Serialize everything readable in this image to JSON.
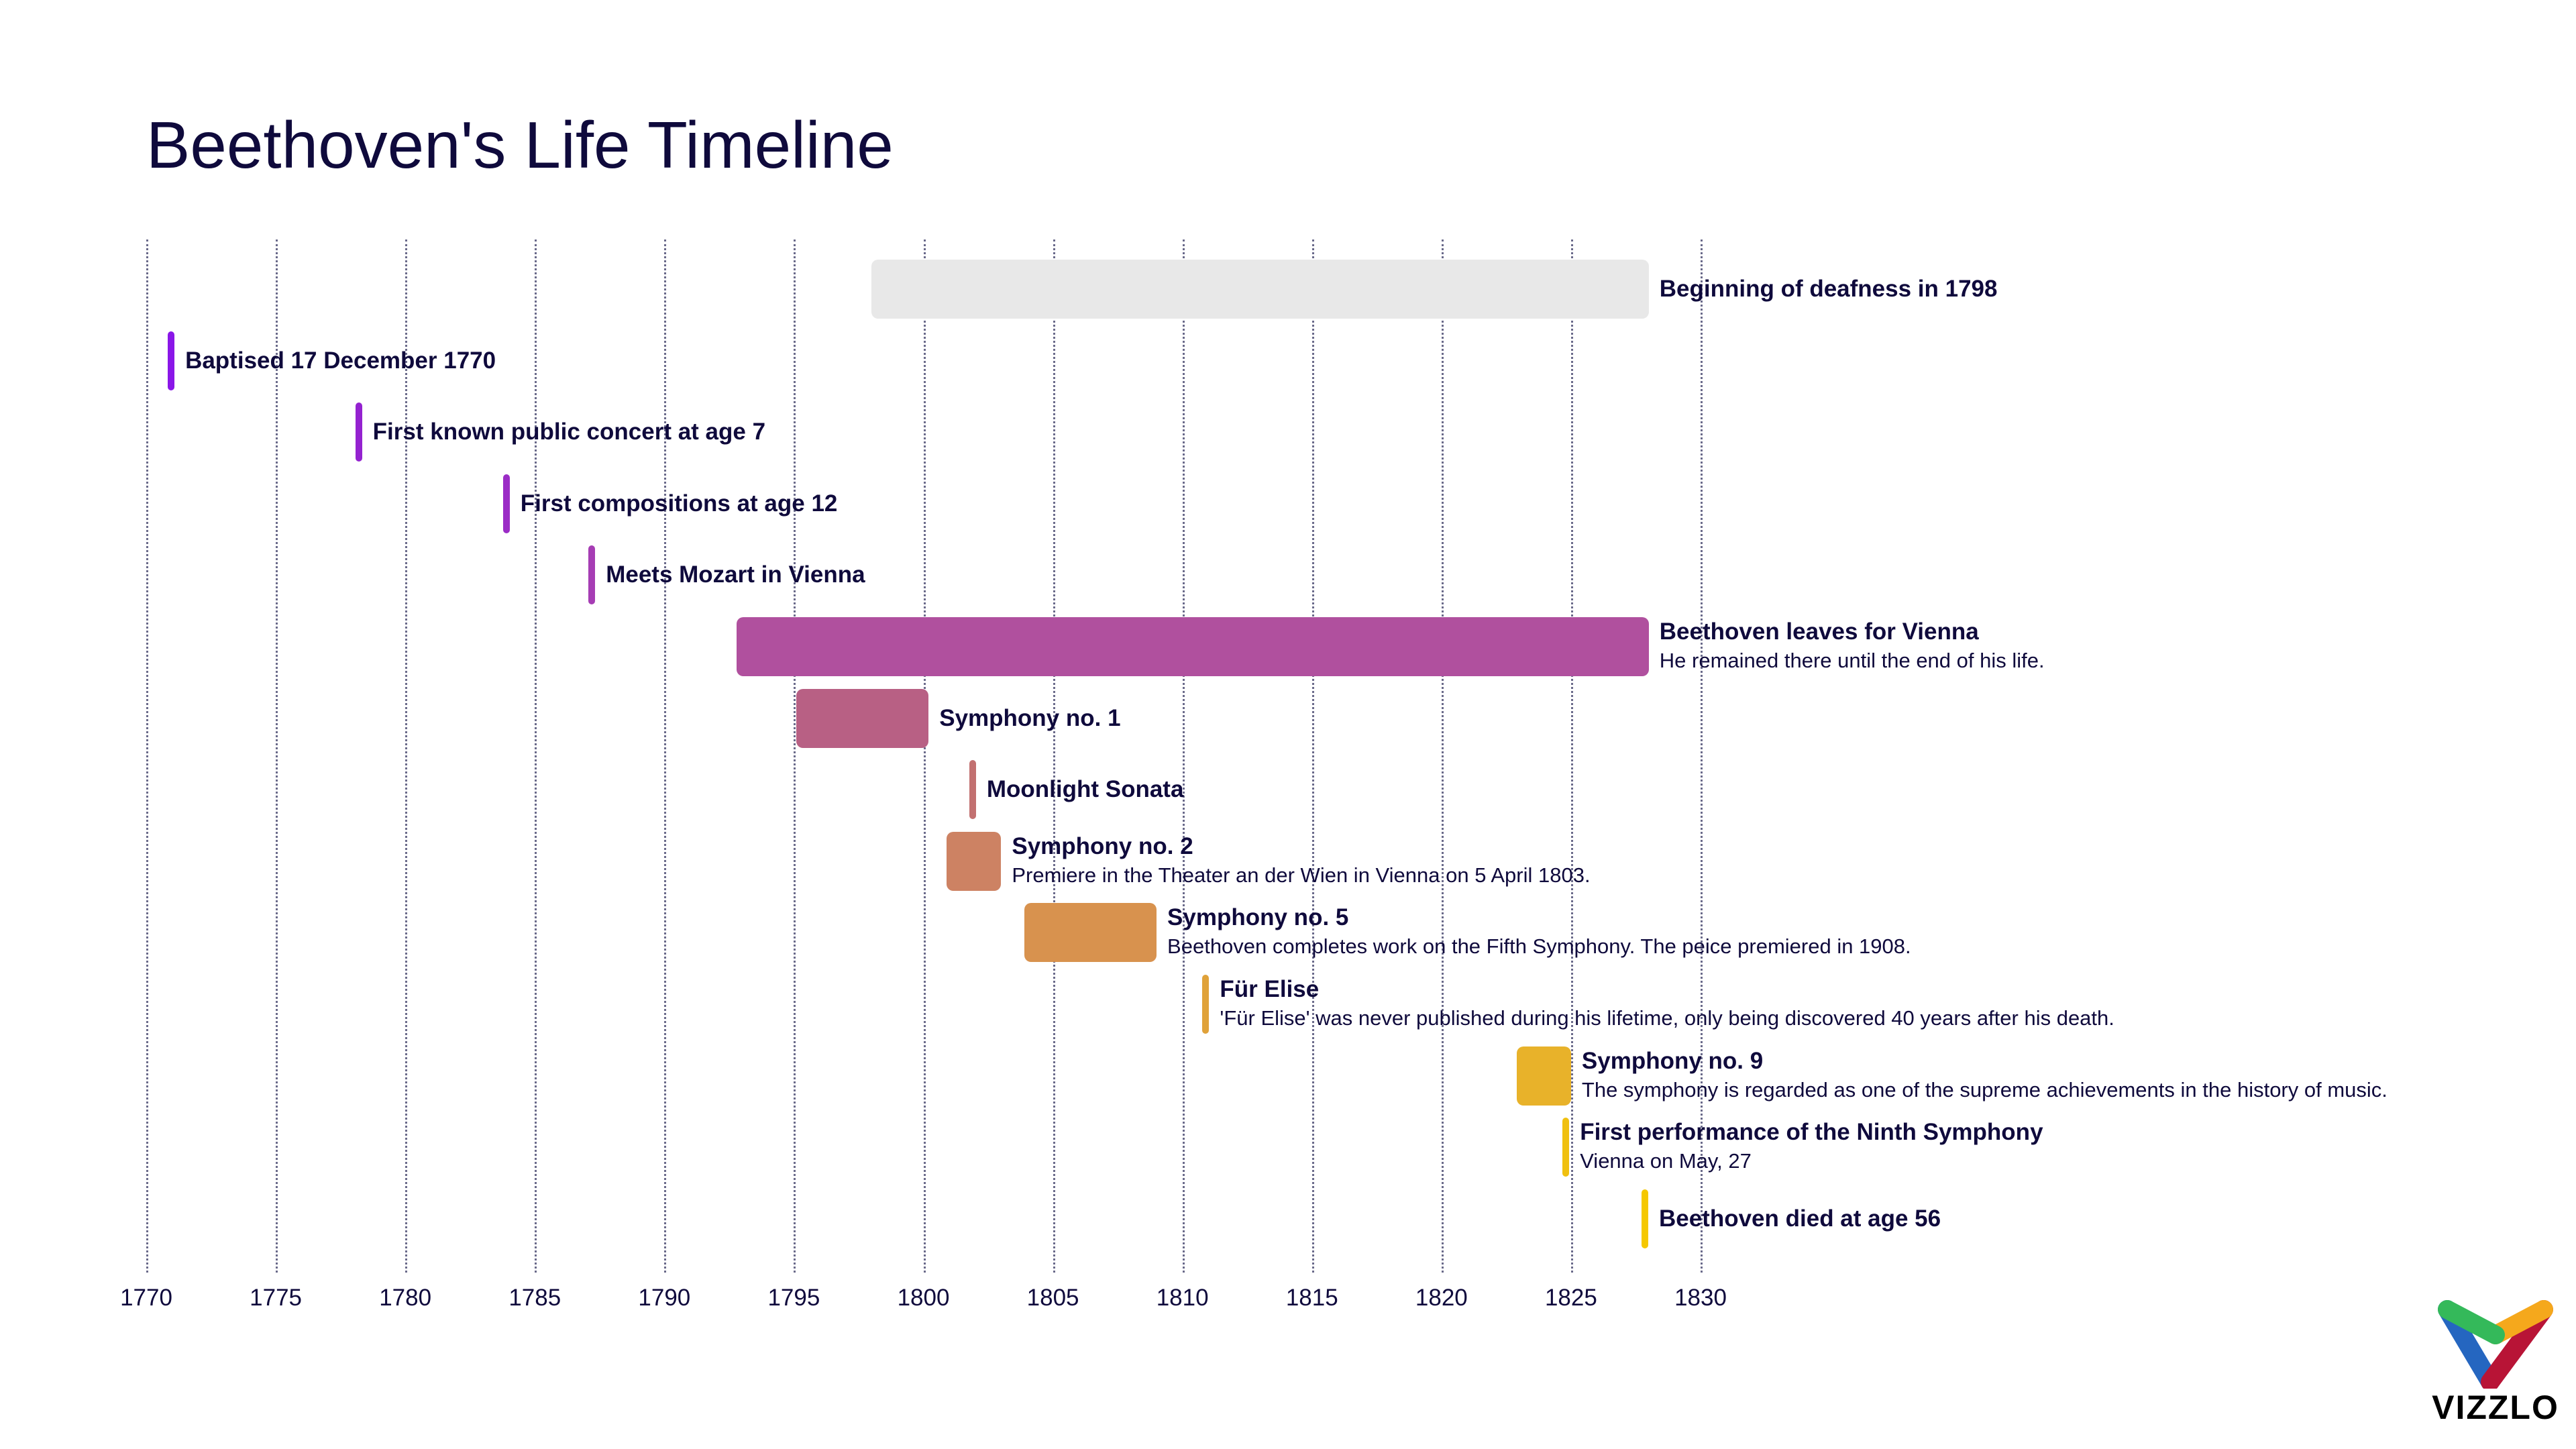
{
  "chart_data": {
    "type": "timeline",
    "title": "Beethoven's Life Timeline",
    "xlim": [
      1770,
      1830
    ],
    "xticks": [
      1770,
      1775,
      1780,
      1785,
      1790,
      1795,
      1800,
      1805,
      1810,
      1815,
      1820,
      1825,
      1830
    ],
    "grid": true,
    "events": [
      {
        "label": "Beginning of deafness in 1798",
        "sub": "",
        "start": 1798,
        "end": 1828,
        "color": "#e8e8e8"
      },
      {
        "label": "Baptised 17 December 1770",
        "sub": "",
        "start": 1770.96,
        "color": "#8a16e8"
      },
      {
        "label": "First known public concert at age 7",
        "sub": "",
        "start": 1778.2,
        "color": "#9422d0"
      },
      {
        "label": "First compositions at age 12",
        "sub": "",
        "start": 1783.9,
        "color": "#9b2cc6"
      },
      {
        "label": "Meets Mozart in Vienna",
        "sub": "",
        "start": 1787.2,
        "color": "#a63db4"
      },
      {
        "label": "Beethoven leaves for Vienna",
        "sub": "He remained there until the end of his life.",
        "start": 1792.8,
        "end": 1828,
        "color": "#b0509e"
      },
      {
        "label": "Symphony no. 1",
        "sub": "",
        "start": 1795.1,
        "end": 1800.2,
        "color": "#b86084"
      },
      {
        "label": "Moonlight Sonata",
        "sub": "",
        "start": 1801.9,
        "color": "#c27070"
      },
      {
        "label": "Symphony no. 2",
        "sub": "Premiere in the Theater an der Wien in Vienna on 5 April 1803.",
        "start": 1800.9,
        "end": 1803.0,
        "color": "#cd8263"
      },
      {
        "label": "Symphony no. 5",
        "sub": "Beethoven completes work on the Fifth Symphony. The peice premiered in 1908.",
        "start": 1803.9,
        "end": 1809.0,
        "color": "#d8924e"
      },
      {
        "label": "Für Elise",
        "sub": "'Für Elise' was never published during his lifetime, only being discovered 40 years after his death.",
        "start": 1810.9,
        "color": "#e0a23a"
      },
      {
        "label": "Symphony no. 9",
        "sub": "The symphony is regarded as one of the supreme achievements in the history of music.",
        "start": 1822.9,
        "end": 1825.0,
        "color": "#e8b22a"
      },
      {
        "label": "First performance of the Ninth Symphony",
        "sub": "Vienna on May, 27",
        "start": 1824.8,
        "color": "#f0c010"
      },
      {
        "label": "Beethoven died at age 56",
        "sub": "",
        "start": 1827.85,
        "color": "#f5c800"
      }
    ]
  },
  "logo": {
    "text": "VIZZLO",
    "colors": [
      "#34b95a",
      "#f5a81c",
      "#2566c0",
      "#b81436"
    ]
  }
}
